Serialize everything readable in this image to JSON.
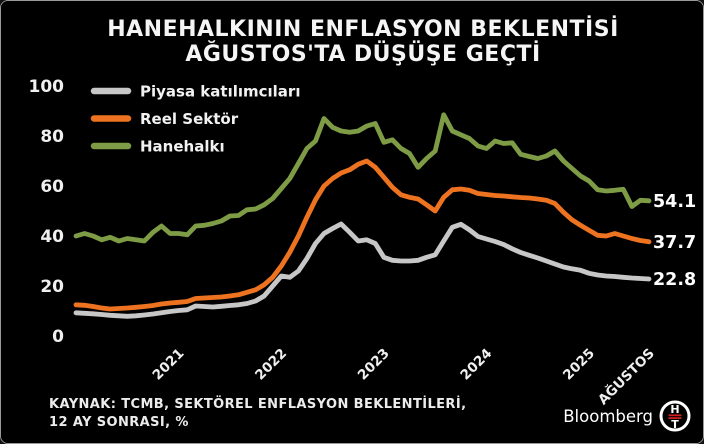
{
  "title": {
    "line1": "HANEHALKININ ENFLASYON BEKLENTİSİ",
    "line2": "AĞUSTOS'TA DÜŞÜŞE GEÇTİ"
  },
  "source": {
    "line1": "KAYNAK: TCMB, SEKTÖREL ENFLASYON BEKLENTİLERİ,",
    "line2": "12 AY SONRASI, %"
  },
  "branding": {
    "wordmark": "Bloomberg",
    "logo_top": "H",
    "logo_bottom": "T",
    "logo_bar_color": "#cc1f1f",
    "logo_ring_color": "#ffffff"
  },
  "chart_data": {
    "type": "line",
    "frequency": "monthly",
    "grid": false,
    "legend_position": "top-left",
    "ylim": [
      0,
      100
    ],
    "y_ticks": [
      0,
      20,
      40,
      60,
      80,
      100
    ],
    "x_tick_labels": [
      "2021",
      "2022",
      "2023",
      "2024",
      "2025",
      "AĞUSTOS"
    ],
    "x_tick_indices": [
      12,
      24,
      36,
      48,
      60,
      67
    ],
    "series": [
      {
        "name": "Piyasa katılımcıları",
        "color": "#c7c7c7",
        "end_label": "22.8",
        "values": [
          9.3,
          9.1,
          8.9,
          8.6,
          8.3,
          8.1,
          7.9,
          8.1,
          8.4,
          8.8,
          9.3,
          9.8,
          10.2,
          10.5,
          12,
          11.8,
          11.6,
          11.9,
          12.2,
          12.5,
          13,
          14,
          16,
          20,
          24,
          23.5,
          26,
          31,
          37,
          41,
          43,
          44.8,
          41.5,
          38,
          38.5,
          37,
          31.5,
          30.3,
          30,
          30,
          30.3,
          31.5,
          32.5,
          38,
          43.5,
          44.7,
          42.5,
          39.8,
          38.8,
          37.8,
          36.6,
          34.9,
          33.4,
          32.3,
          31.2,
          30,
          28.8,
          27.6,
          26.9,
          26.3,
          25.1,
          24.4,
          24,
          23.8,
          23.5,
          23.2,
          23,
          22.8
        ]
      },
      {
        "name": "Reel Sektör",
        "color": "#ee7320",
        "end_label": "37.7",
        "values": [
          12.5,
          12.3,
          11.8,
          11.2,
          10.8,
          11,
          11.2,
          11.5,
          11.8,
          12.2,
          12.8,
          13.2,
          13.5,
          13.8,
          15,
          15.2,
          15.4,
          15.6,
          16,
          16.5,
          17.5,
          18.5,
          20.5,
          23.5,
          28,
          33.5,
          40,
          47.5,
          54.5,
          60,
          63,
          65.2,
          66.5,
          68.7,
          70,
          67.5,
          63.5,
          59.5,
          56.5,
          55.5,
          54.8,
          52.5,
          50,
          55.5,
          58.5,
          58.8,
          58.3,
          57,
          56.6,
          56.2,
          56,
          55.7,
          55.4,
          55.2,
          54.8,
          54.3,
          53,
          49.5,
          46.5,
          44.3,
          42.3,
          40.3,
          40,
          41,
          40,
          39,
          38.2,
          37.7
        ]
      },
      {
        "name": "Hanehalkı",
        "color": "#7d9c45",
        "end_label": "54.1",
        "values": [
          40,
          41,
          40,
          38.5,
          39.5,
          38,
          39,
          38.5,
          38,
          41.5,
          44,
          41,
          41,
          40.5,
          44,
          44.3,
          45,
          46,
          48,
          48.2,
          50.5,
          50.8,
          52.5,
          55,
          59,
          63,
          69,
          75,
          78,
          87,
          83.5,
          82,
          81.5,
          82,
          84,
          85,
          77.5,
          78.5,
          75,
          73,
          67.5,
          71,
          74,
          88.5,
          82,
          80.5,
          79,
          76,
          75,
          78,
          77,
          77.3,
          72.7,
          71.8,
          71,
          72,
          74,
          70,
          67,
          64,
          62,
          58.5,
          58,
          58.3,
          58.7,
          51.8,
          54.3,
          54.1
        ]
      }
    ]
  }
}
